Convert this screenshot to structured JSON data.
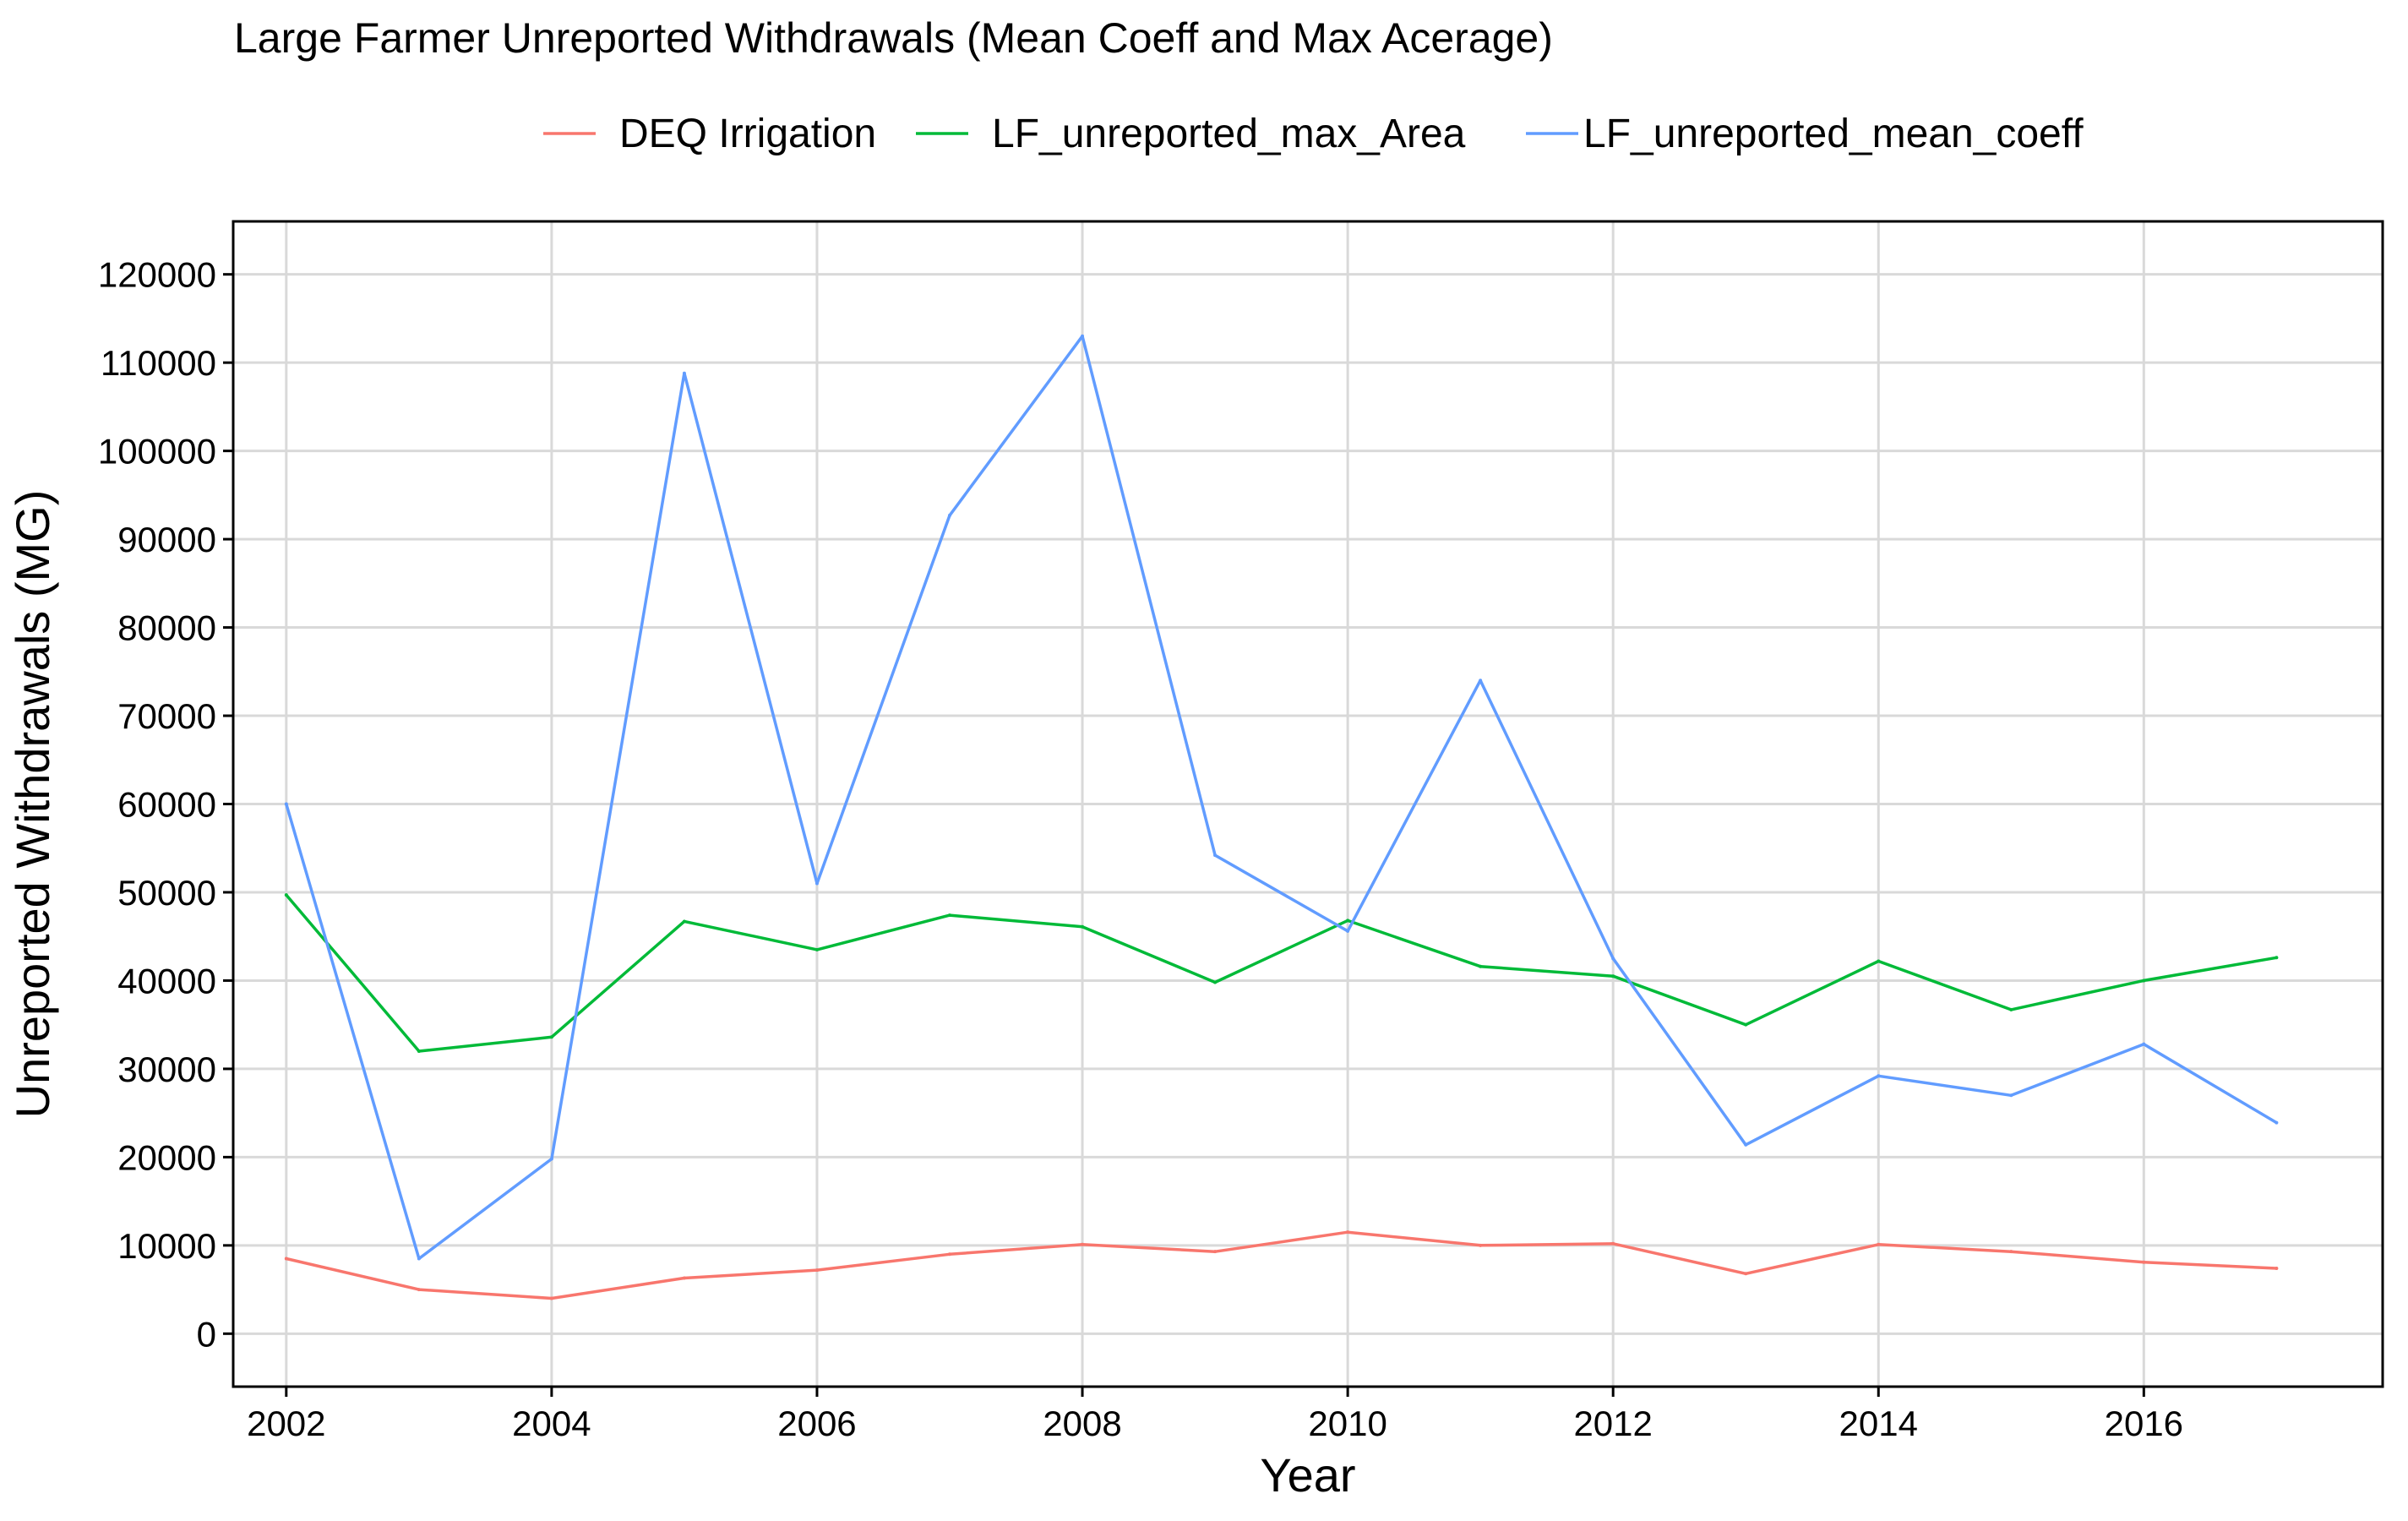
{
  "chart_data": {
    "type": "line",
    "title": "Large Farmer Unreported Withdrawals (Mean Coeff and Max Acerage)",
    "xlabel": "Year",
    "ylabel": "Unreported Withdrawals (MG)",
    "x": [
      2002,
      2003,
      2004,
      2005,
      2006,
      2007,
      2008,
      2009,
      2010,
      2011,
      2012,
      2013,
      2014,
      2015,
      2016,
      2017
    ],
    "xlim": [
      2001.6,
      2017.8
    ],
    "ylim": [
      -6000,
      126000
    ],
    "xticks": [
      2002,
      2004,
      2006,
      2008,
      2010,
      2012,
      2014,
      2016
    ],
    "yticks": [
      0,
      10000,
      20000,
      30000,
      40000,
      50000,
      60000,
      70000,
      80000,
      90000,
      100000,
      110000,
      120000
    ],
    "xtick_labels": [
      "2002",
      "2004",
      "2006",
      "2008",
      "2010",
      "2012",
      "2014",
      "2016"
    ],
    "ytick_labels": [
      "0",
      "10000",
      "20000",
      "30000",
      "40000",
      "50000",
      "60000",
      "70000",
      "80000",
      "90000",
      "100000",
      "110000",
      "120000"
    ],
    "grid": true,
    "legend_position": "top",
    "series": [
      {
        "name": "DEQ Irrigation",
        "color": "#F8766D",
        "values": [
          8500,
          5000,
          4000,
          6300,
          7200,
          9000,
          10100,
          9300,
          11500,
          10000,
          10200,
          6800,
          10100,
          9300,
          8100,
          7400
        ]
      },
      {
        "name": "LF_unreported_max_Area",
        "color": "#00BA38",
        "values": [
          49700,
          32000,
          33600,
          46700,
          43500,
          47400,
          46100,
          39800,
          46800,
          41600,
          40500,
          35000,
          42200,
          36700,
          40000,
          42600
        ]
      },
      {
        "name": "LF_unreported_mean_coeff",
        "color": "#619CFF",
        "values": [
          60000,
          8500,
          19800,
          108800,
          51000,
          92700,
          113000,
          54200,
          45600,
          74000,
          42500,
          21400,
          29200,
          27000,
          32800,
          23900
        ]
      }
    ]
  }
}
